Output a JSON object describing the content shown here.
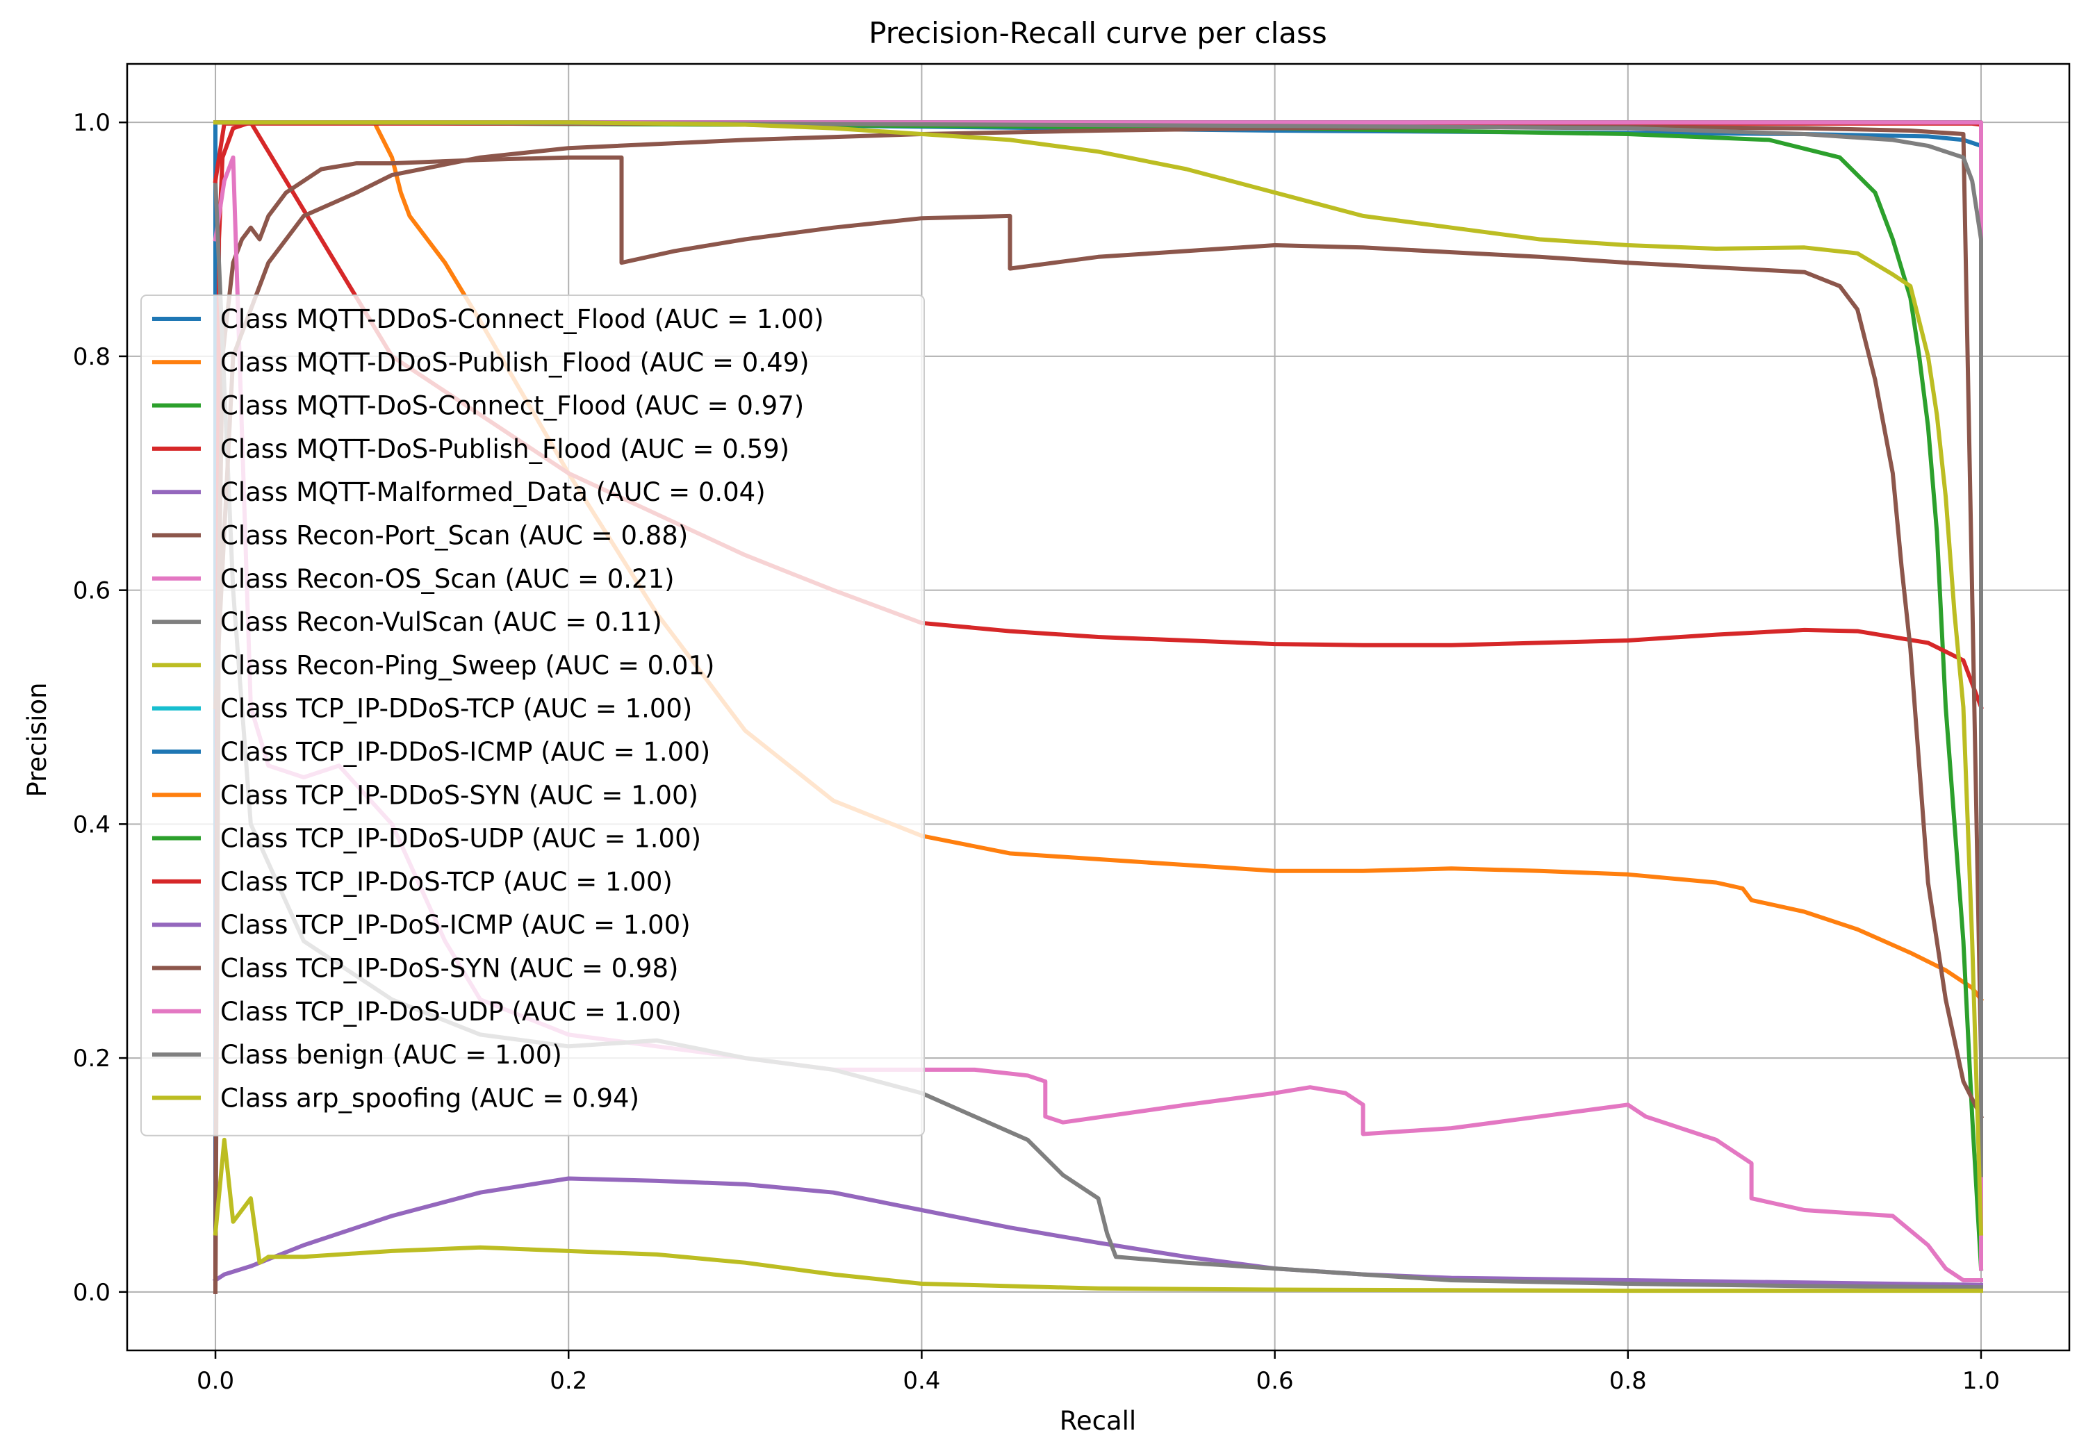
{
  "chart_data": {
    "type": "line",
    "title": "Precision-Recall curve per class",
    "xlabel": "Recall",
    "ylabel": "Precision",
    "xlim": [
      -0.05,
      1.05
    ],
    "ylim": [
      -0.05,
      1.05
    ],
    "xticks": [
      0.0,
      0.2,
      0.4,
      0.6,
      0.8,
      1.0
    ],
    "xtick_labels": [
      "0.0",
      "0.2",
      "0.4",
      "0.6",
      "0.8",
      "1.0"
    ],
    "yticks": [
      0.0,
      0.2,
      0.4,
      0.6,
      0.8,
      1.0
    ],
    "ytick_labels": [
      "0.0",
      "0.2",
      "0.4",
      "0.6",
      "0.8",
      "1.0"
    ],
    "grid": true,
    "legend_position": "center-left",
    "series": [
      {
        "name": "Class MQTT-DDoS-Connect_Flood (AUC = 1.00)",
        "color": "#1f77b4",
        "x": [
          0.0,
          0.0,
          0.01,
          0.3,
          0.6,
          0.9,
          0.97,
          0.99,
          1.0,
          1.0
        ],
        "y": [
          0.0,
          1.0,
          1.0,
          0.998,
          0.993,
          0.99,
          0.988,
          0.985,
          0.98,
          0.02
        ]
      },
      {
        "name": "Class MQTT-DDoS-Publish_Flood (AUC = 0.49)",
        "color": "#ff7f0e",
        "x": [
          0.0,
          0.005,
          0.09,
          0.1,
          0.105,
          0.11,
          0.13,
          0.15,
          0.2,
          0.25,
          0.3,
          0.35,
          0.4,
          0.45,
          0.5,
          0.55,
          0.6,
          0.65,
          0.7,
          0.75,
          0.8,
          0.85,
          0.865,
          0.87,
          0.9,
          0.93,
          0.96,
          0.98,
          0.995,
          1.0
        ],
        "y": [
          1.0,
          1.0,
          1.0,
          0.97,
          0.94,
          0.92,
          0.88,
          0.83,
          0.7,
          0.58,
          0.48,
          0.42,
          0.39,
          0.375,
          0.37,
          0.365,
          0.36,
          0.36,
          0.362,
          0.36,
          0.357,
          0.35,
          0.345,
          0.335,
          0.325,
          0.31,
          0.29,
          0.275,
          0.26,
          0.25
        ]
      },
      {
        "name": "Class MQTT-DoS-Connect_Flood (AUC = 0.97)",
        "color": "#2ca02c",
        "x": [
          0.0,
          0.3,
          0.6,
          0.8,
          0.88,
          0.92,
          0.94,
          0.95,
          0.96,
          0.965,
          0.97,
          0.975,
          0.98,
          0.99,
          0.995,
          1.0
        ],
        "y": [
          1.0,
          0.998,
          0.995,
          0.99,
          0.985,
          0.97,
          0.94,
          0.9,
          0.85,
          0.8,
          0.74,
          0.65,
          0.5,
          0.3,
          0.15,
          0.02
        ]
      },
      {
        "name": "Class MQTT-DoS-Publish_Flood (AUC = 0.59)",
        "color": "#d62728",
        "x": [
          0.0,
          0.002,
          0.004,
          0.01,
          0.02,
          0.1,
          0.2,
          0.3,
          0.35,
          0.4,
          0.45,
          0.5,
          0.55,
          0.6,
          0.65,
          0.7,
          0.75,
          0.8,
          0.85,
          0.9,
          0.93,
          0.95,
          0.97,
          0.99,
          1.0
        ],
        "y": [
          0.0,
          0.9,
          0.97,
          0.995,
          1.0,
          0.8,
          0.7,
          0.63,
          0.6,
          0.572,
          0.565,
          0.56,
          0.557,
          0.554,
          0.553,
          0.553,
          0.555,
          0.557,
          0.562,
          0.566,
          0.565,
          0.56,
          0.555,
          0.54,
          0.5
        ]
      },
      {
        "name": "Class MQTT-Malformed_Data (AUC = 0.04)",
        "color": "#9467bd",
        "x": [
          0.0,
          0.005,
          0.02,
          0.05,
          0.1,
          0.15,
          0.2,
          0.25,
          0.3,
          0.35,
          0.4,
          0.45,
          0.5,
          0.55,
          0.6,
          0.65,
          0.7,
          0.8,
          0.9,
          1.0
        ],
        "y": [
          0.01,
          0.015,
          0.022,
          0.04,
          0.065,
          0.085,
          0.097,
          0.095,
          0.092,
          0.085,
          0.07,
          0.055,
          0.042,
          0.03,
          0.02,
          0.015,
          0.012,
          0.01,
          0.008,
          0.006
        ]
      },
      {
        "name": "Class Recon-Port_Scan (AUC = 0.88)",
        "color": "#8c564b",
        "x": [
          0.0,
          0.002,
          0.004,
          0.01,
          0.015,
          0.02,
          0.025,
          0.03,
          0.04,
          0.06,
          0.08,
          0.1,
          0.15,
          0.2,
          0.23,
          0.23,
          0.26,
          0.3,
          0.35,
          0.4,
          0.45,
          0.45,
          0.5,
          0.55,
          0.6,
          0.65,
          0.7,
          0.75,
          0.8,
          0.85,
          0.9,
          0.92,
          0.93,
          0.94,
          0.95,
          0.955,
          0.96,
          0.965,
          0.97,
          0.98,
          0.99,
          1.0
        ],
        "y": [
          0.0,
          0.6,
          0.8,
          0.88,
          0.9,
          0.91,
          0.9,
          0.92,
          0.94,
          0.96,
          0.965,
          0.965,
          0.968,
          0.97,
          0.97,
          0.88,
          0.89,
          0.9,
          0.91,
          0.918,
          0.92,
          0.875,
          0.885,
          0.89,
          0.895,
          0.893,
          0.889,
          0.885,
          0.88,
          0.876,
          0.872,
          0.86,
          0.84,
          0.78,
          0.7,
          0.62,
          0.55,
          0.45,
          0.35,
          0.25,
          0.18,
          0.15
        ]
      },
      {
        "name": "Class Recon-OS_Scan (AUC = 0.21)",
        "color": "#e377c2",
        "x": [
          0.0,
          0.005,
          0.01,
          0.02,
          0.03,
          0.05,
          0.07,
          0.1,
          0.13,
          0.15,
          0.2,
          0.25,
          0.3,
          0.35,
          0.4,
          0.43,
          0.46,
          0.47,
          0.47,
          0.48,
          0.55,
          0.6,
          0.62,
          0.64,
          0.65,
          0.65,
          0.7,
          0.75,
          0.8,
          0.81,
          0.83,
          0.85,
          0.86,
          0.87,
          0.87,
          0.9,
          0.95,
          0.97,
          0.98,
          0.99,
          1.0
        ],
        "y": [
          0.9,
          0.95,
          0.97,
          0.5,
          0.45,
          0.44,
          0.45,
          0.4,
          0.3,
          0.25,
          0.22,
          0.21,
          0.2,
          0.19,
          0.19,
          0.19,
          0.185,
          0.18,
          0.15,
          0.145,
          0.16,
          0.17,
          0.175,
          0.17,
          0.16,
          0.135,
          0.14,
          0.15,
          0.16,
          0.15,
          0.14,
          0.13,
          0.12,
          0.11,
          0.08,
          0.07,
          0.065,
          0.04,
          0.02,
          0.01,
          0.01
        ]
      },
      {
        "name": "Class Recon-VulScan (AUC = 0.11)",
        "color": "#7f7f7f",
        "x": [
          0.0,
          0.01,
          0.02,
          0.05,
          0.1,
          0.15,
          0.2,
          0.25,
          0.3,
          0.35,
          0.4,
          0.43,
          0.46,
          0.48,
          0.5,
          0.505,
          0.51,
          0.55,
          0.6,
          0.65,
          0.7,
          0.8,
          0.9,
          1.0
        ],
        "y": [
          0.95,
          0.6,
          0.4,
          0.3,
          0.25,
          0.22,
          0.21,
          0.215,
          0.2,
          0.19,
          0.17,
          0.15,
          0.13,
          0.1,
          0.08,
          0.05,
          0.03,
          0.025,
          0.02,
          0.015,
          0.01,
          0.007,
          0.005,
          0.004
        ]
      },
      {
        "name": "Class Recon-Ping_Sweep (AUC = 0.01)",
        "color": "#bcbd22",
        "x": [
          0.0,
          0.005,
          0.01,
          0.015,
          0.02,
          0.025,
          0.03,
          0.05,
          0.1,
          0.15,
          0.2,
          0.25,
          0.3,
          0.35,
          0.4,
          0.5,
          0.6,
          0.8,
          1.0
        ],
        "y": [
          0.05,
          0.13,
          0.06,
          0.07,
          0.08,
          0.025,
          0.03,
          0.03,
          0.035,
          0.038,
          0.035,
          0.032,
          0.025,
          0.015,
          0.007,
          0.003,
          0.002,
          0.001,
          0.001
        ]
      },
      {
        "name": "Class TCP_IP-DDoS-TCP (AUC = 1.00)",
        "color": "#17becf",
        "x": [
          0.0,
          1.0,
          1.0
        ],
        "y": [
          1.0,
          1.0,
          0.02
        ]
      },
      {
        "name": "Class TCP_IP-DDoS-ICMP (AUC = 1.00)",
        "color": "#1f77b4",
        "x": [
          0.0,
          1.0,
          1.0
        ],
        "y": [
          1.0,
          1.0,
          0.02
        ]
      },
      {
        "name": "Class TCP_IP-DDoS-SYN (AUC = 1.00)",
        "color": "#ff7f0e",
        "x": [
          0.0,
          1.0,
          1.0
        ],
        "y": [
          1.0,
          1.0,
          0.02
        ]
      },
      {
        "name": "Class TCP_IP-DDoS-UDP (AUC = 1.00)",
        "color": "#2ca02c",
        "x": [
          0.0,
          1.0,
          1.0
        ],
        "y": [
          1.0,
          1.0,
          0.02
        ]
      },
      {
        "name": "Class TCP_IP-DoS-TCP (AUC = 1.00)",
        "color": "#d62728",
        "x": [
          0.0,
          0.005,
          0.995,
          1.0,
          1.0
        ],
        "y": [
          0.95,
          0.999,
          0.999,
          0.998,
          0.06
        ]
      },
      {
        "name": "Class TCP_IP-DoS-ICMP (AUC = 1.00)",
        "color": "#9467bd",
        "x": [
          0.0,
          1.0,
          1.0
        ],
        "y": [
          1.0,
          1.0,
          0.02
        ]
      },
      {
        "name": "Class TCP_IP-DoS-SYN (AUC = 0.98)",
        "color": "#8c564b",
        "x": [
          0.0,
          0.01,
          0.03,
          0.05,
          0.08,
          0.1,
          0.15,
          0.2,
          0.3,
          0.4,
          0.5,
          0.6,
          0.7,
          0.8,
          0.9,
          0.96,
          0.99,
          1.0
        ],
        "y": [
          0.5,
          0.8,
          0.88,
          0.92,
          0.94,
          0.955,
          0.97,
          0.978,
          0.985,
          0.99,
          0.993,
          0.995,
          0.996,
          0.996,
          0.995,
          0.993,
          0.99,
          0.2
        ]
      },
      {
        "name": "Class TCP_IP-DoS-UDP (AUC = 1.00)",
        "color": "#e377c2",
        "x": [
          0.0,
          1.0,
          1.0
        ],
        "y": [
          1.0,
          1.0,
          0.02
        ]
      },
      {
        "name": "Class benign (AUC = 1.00)",
        "color": "#7f7f7f",
        "x": [
          0.0,
          0.3,
          0.6,
          0.8,
          0.9,
          0.95,
          0.97,
          0.98,
          0.99,
          0.995,
          1.0,
          1.0
        ],
        "y": [
          1.0,
          0.999,
          0.997,
          0.995,
          0.99,
          0.985,
          0.98,
          0.975,
          0.97,
          0.95,
          0.9,
          0.1
        ]
      },
      {
        "name": "Class arp_spoofing (AUC = 0.94)",
        "color": "#bcbd22",
        "x": [
          0.0,
          0.1,
          0.2,
          0.3,
          0.35,
          0.4,
          0.45,
          0.5,
          0.55,
          0.6,
          0.65,
          0.7,
          0.75,
          0.8,
          0.85,
          0.9,
          0.93,
          0.95,
          0.96,
          0.97,
          0.975,
          0.98,
          0.985,
          0.99,
          0.995,
          1.0
        ],
        "y": [
          1.0,
          1.0,
          1.0,
          0.998,
          0.995,
          0.99,
          0.985,
          0.975,
          0.96,
          0.94,
          0.92,
          0.91,
          0.9,
          0.895,
          0.892,
          0.893,
          0.888,
          0.87,
          0.86,
          0.8,
          0.75,
          0.68,
          0.58,
          0.5,
          0.3,
          0.05
        ]
      }
    ]
  }
}
